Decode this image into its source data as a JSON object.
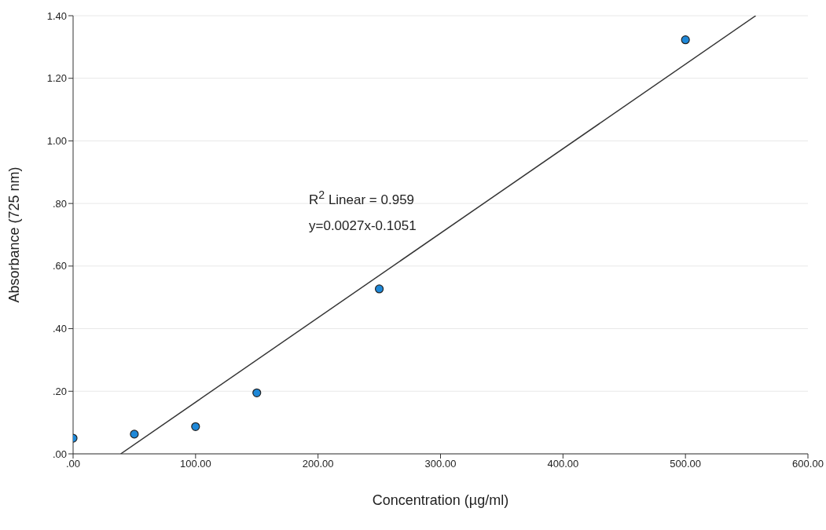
{
  "chart_data": {
    "type": "scatter",
    "xlabel": "Concentration (µg/ml)",
    "ylabel": "Absorbance (725 nm)",
    "annotations": [
      "R$^{2}$ Linear = 0.959",
      "y=0.0027x-0.1051"
    ],
    "series": [
      {
        "color": "#1e88d8",
        "x": [
          0,
          50,
          100,
          150,
          250,
          500
        ],
        "values": [
          0.05,
          0.063,
          0.087,
          0.195,
          0.527,
          1.323
        ],
        "marker": "circle"
      },
      {
        "type": "line",
        "color": "#333333",
        "x": [
          38.9,
          557.4
        ],
        "values": [
          0,
          1.4
        ],
        "marker": "none"
      }
    ],
    "xlim": [
      0,
      600
    ],
    "xticks": [
      {
        "value": 0,
        "label": ".00"
      },
      {
        "value": 100,
        "label": "100.00"
      },
      {
        "value": 200,
        "label": "200.00"
      },
      {
        "value": 300,
        "label": "300.00"
      },
      {
        "value": 400,
        "label": "400.00"
      },
      {
        "value": 500,
        "label": "500.00"
      },
      {
        "value": 600,
        "label": "600.00"
      }
    ],
    "ylim": [
      0,
      1.4
    ],
    "yticks": [
      {
        "value": 0,
        "label": ".00"
      },
      {
        "value": 0.2,
        "label": ".20"
      },
      {
        "value": 0.4,
        "label": ".40"
      },
      {
        "value": 0.6,
        "label": ".60"
      },
      {
        "value": 0.8,
        "label": ".80"
      },
      {
        "value": 1,
        "label": "1.00"
      },
      {
        "value": 1.2,
        "label": "1.20"
      },
      {
        "value": 1.4,
        "label": "1.40"
      }
    ],
    "grid": "y",
    "legend": false
  }
}
